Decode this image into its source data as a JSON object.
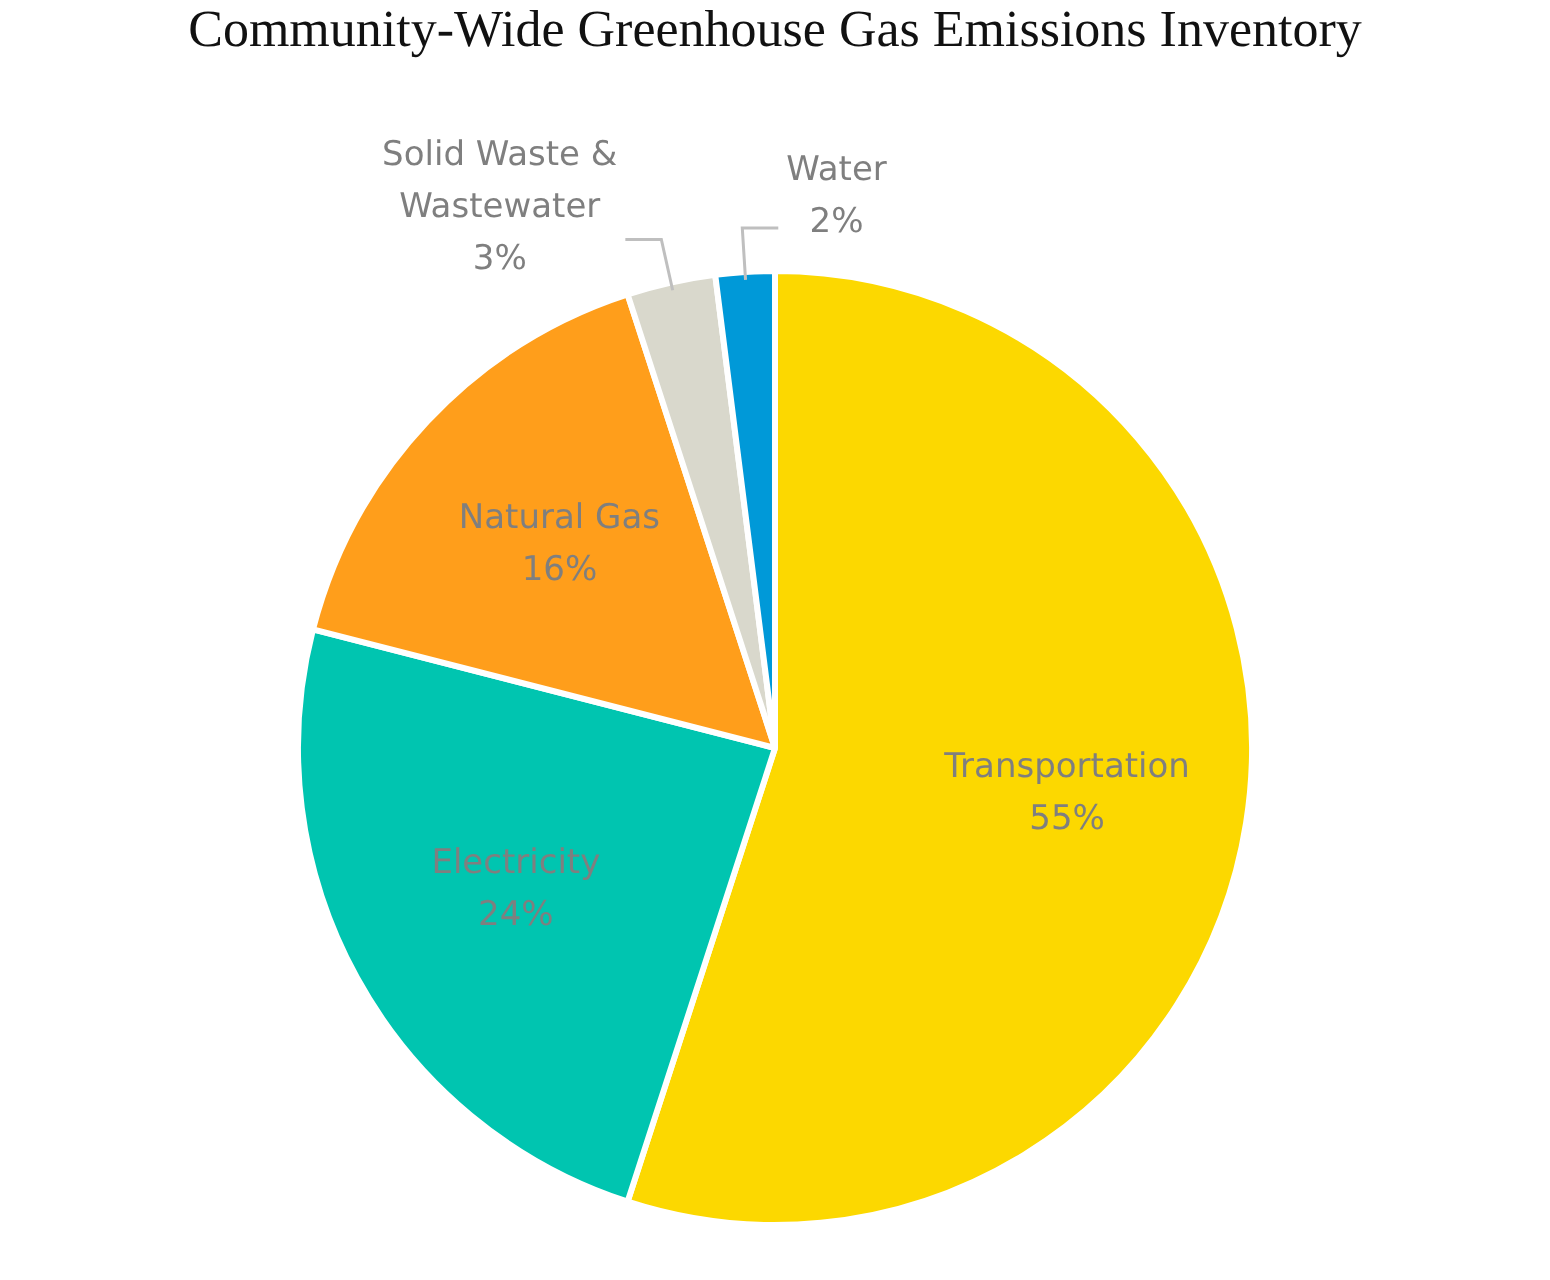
{
  "chart_data": {
    "type": "pie",
    "title": "Community-Wide Greenhouse Gas Emissions Inventory",
    "categories": [
      "Transportation",
      "Electricity",
      "Natural Gas",
      "Solid Waste & Wastewater",
      "Water"
    ],
    "values": [
      55,
      24,
      16,
      3,
      2
    ],
    "colors": [
      "#fcd800",
      "#00c5b0",
      "#ff9e1b",
      "#d9d8cc",
      "#0099d8"
    ],
    "value_labels": [
      "55%",
      "24%",
      "16%",
      "3%",
      "2%"
    ],
    "legend": false
  }
}
